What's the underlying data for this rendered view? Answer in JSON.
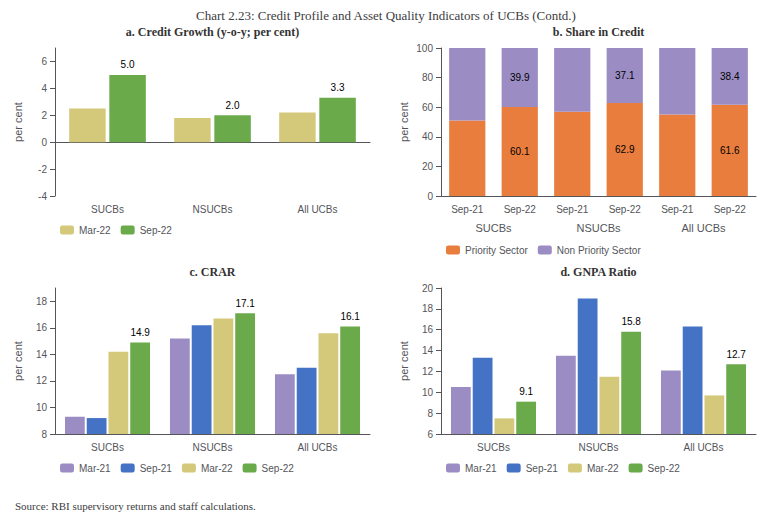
{
  "title": "Chart 2.23: Credit Profile and Asset Quality Indicators of UCBs (Contd.)",
  "annotations": [
    "Source: RBI supervisory returns and staff calculations."
  ],
  "chart_data": [
    {
      "type": "bar",
      "title": "a. Credit Growth (y-o-y; per cent)",
      "ylabel": "per cent",
      "categories": [
        "SUCBs",
        "NSUCBs",
        "All UCBs"
      ],
      "series": [
        {
          "name": "Mar-22",
          "color": "#d4c97a",
          "values": [
            2.5,
            1.8,
            2.2
          ]
        },
        {
          "name": "Sep-22",
          "color": "#6aaa4b",
          "values": [
            5.0,
            2.0,
            3.3
          ],
          "value_labels": [
            "5.0",
            "2.0",
            "3.3"
          ]
        }
      ],
      "ylim": [
        -4,
        7
      ],
      "yticks": [
        -4,
        -2,
        0,
        2,
        4,
        6
      ],
      "grid": false,
      "legend": "bottom"
    },
    {
      "type": "bar",
      "stacked": true,
      "title": "b. Share in Credit",
      "ylabel": "per cent",
      "categories": [
        "Sep-21",
        "Sep-22",
        "Sep-21",
        "Sep-22",
        "Sep-21",
        "Sep-22"
      ],
      "annotations": [
        "SUCBs",
        "NSUCBs",
        "All UCBs"
      ],
      "series": [
        {
          "name": "Priority Sector",
          "color": "#e87d3e",
          "values": [
            51.0,
            60.1,
            57.0,
            62.9,
            55.0,
            61.6
          ],
          "value_labels": [
            null,
            "60.1",
            null,
            "62.9",
            null,
            "61.6"
          ]
        },
        {
          "name": "Non Priority Sector",
          "color": "#9b8dc4",
          "values": [
            49.0,
            39.9,
            43.0,
            37.1,
            45.0,
            38.4
          ],
          "value_labels": [
            null,
            "39.9",
            null,
            "37.1",
            null,
            "38.4"
          ]
        }
      ],
      "ylim": [
        0,
        100
      ],
      "yticks": [
        0,
        20,
        40,
        60,
        80,
        100
      ],
      "grid": false,
      "legend": "bottom"
    },
    {
      "type": "bar",
      "title": "c. CRAR",
      "ylabel": "per cent",
      "categories": [
        "SUCBs",
        "NSUCBs",
        "All UCBs"
      ],
      "series": [
        {
          "name": "Mar-21",
          "color": "#9b8dc4",
          "values": [
            9.3,
            15.2,
            12.5
          ]
        },
        {
          "name": "Sep-21",
          "color": "#4472c4",
          "values": [
            9.2,
            16.2,
            13.0
          ]
        },
        {
          "name": "Mar-22",
          "color": "#d4c97a",
          "values": [
            14.2,
            16.7,
            15.6
          ]
        },
        {
          "name": "Sep-22",
          "color": "#6aaa4b",
          "values": [
            14.9,
            17.1,
            16.1
          ],
          "data_labels": true
        }
      ],
      "ylim": [
        8,
        19
      ],
      "yticks": [
        8,
        10,
        12,
        14,
        16,
        18
      ],
      "grid": false,
      "legend": "bottom"
    },
    {
      "type": "bar",
      "title": "d. GNPA Ratio",
      "ylabel": "per cent",
      "categories": [
        "SUCBs",
        "NSUCBs",
        "All UCBs"
      ],
      "series": [
        {
          "name": "Mar-21",
          "color": "#9b8dc4",
          "values": [
            10.5,
            13.5,
            12.1
          ]
        },
        {
          "name": "Sep-21",
          "color": "#4472c4",
          "values": [
            13.3,
            19.0,
            16.3
          ]
        },
        {
          "name": "Mar-22",
          "color": "#d4c97a",
          "values": [
            7.5,
            11.5,
            9.7
          ]
        },
        {
          "name": "Sep-22",
          "color": "#6aaa4b",
          "values": [
            9.1,
            15.8,
            12.7
          ],
          "data_labels": true
        }
      ],
      "ylim": [
        6,
        20
      ],
      "yticks": [
        6,
        8,
        10,
        12,
        14,
        16,
        18,
        20
      ],
      "grid": false,
      "legend": "bottom"
    }
  ]
}
